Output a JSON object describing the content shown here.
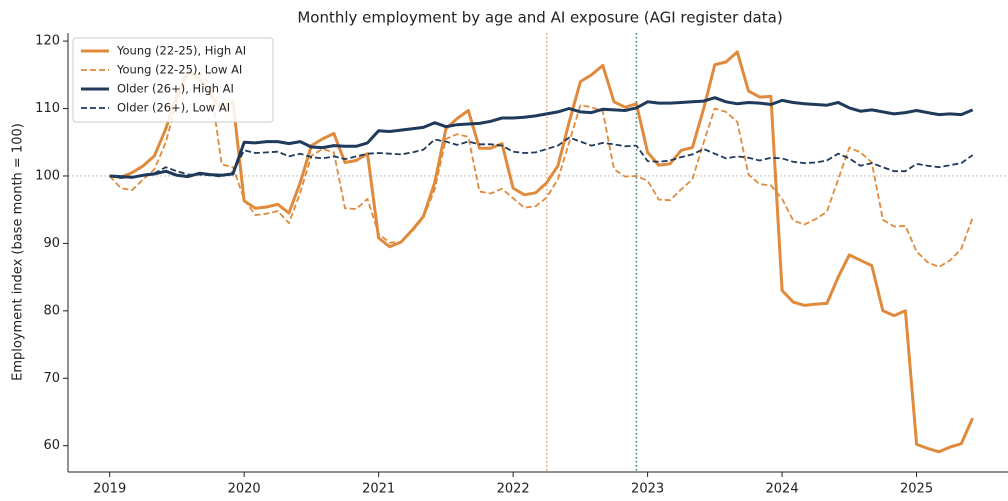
{
  "chart_data": {
    "type": "line",
    "title": "Monthly employment by age and AI exposure (AGI register data)",
    "y_label": "Employment index (base month = 100)",
    "x": [
      2019,
      2019.083,
      2019.167,
      2019.25,
      2019.333,
      2019.417,
      2019.5,
      2019.583,
      2019.667,
      2019.75,
      2019.833,
      2019.917,
      2020,
      2020.083,
      2020.167,
      2020.25,
      2020.333,
      2020.417,
      2020.5,
      2020.583,
      2020.667,
      2020.75,
      2020.833,
      2020.917,
      2021,
      2021.083,
      2021.167,
      2021.25,
      2021.333,
      2021.417,
      2021.5,
      2021.583,
      2021.667,
      2021.75,
      2021.833,
      2021.917,
      2022,
      2022.083,
      2022.167,
      2022.25,
      2022.333,
      2022.417,
      2022.5,
      2022.583,
      2022.667,
      2022.75,
      2022.833,
      2022.917,
      2023,
      2023.083,
      2023.167,
      2023.25,
      2023.333,
      2023.417,
      2023.5,
      2023.583,
      2023.667,
      2023.75,
      2023.833,
      2023.917,
      2024,
      2024.083,
      2024.167,
      2024.25,
      2024.333,
      2024.417,
      2024.5,
      2024.583,
      2024.667,
      2024.75,
      2024.833,
      2024.917,
      2025,
      2025.083,
      2025.167,
      2025.25,
      2025.333,
      2025.417
    ],
    "series": [
      {
        "name": "Young (22-25), High AI",
        "color": "#e08a3c",
        "linestyle": "solid",
        "values": [
          100,
          99.8,
          100.5,
          101.5,
          103,
          107,
          112,
          115.5,
          114.5,
          112,
          110,
          111,
          96.3,
          95.2,
          95.4,
          95.8,
          94.5,
          99,
          104.5,
          105.5,
          106.3,
          102,
          102.3,
          103.3,
          90.8,
          89.5,
          90.2,
          92,
          94,
          99,
          107,
          108.5,
          109.7,
          104.1,
          104.1,
          104.8,
          98.2,
          97.2,
          97.5,
          99,
          101.5,
          108,
          114,
          115,
          116.4,
          111,
          110.2,
          110.7,
          103.5,
          101.6,
          101.8,
          103.8,
          104.2,
          110,
          116.5,
          116.9,
          118.4,
          112.6,
          111.7,
          111.8,
          83,
          81.3,
          80.8,
          81,
          81.1,
          85,
          88.3,
          87.5,
          86.7,
          80,
          79.3,
          80,
          60.2,
          59.6,
          59.1,
          59.8,
          60.3,
          64.1
        ]
      },
      {
        "name": "Young (22-25), Low AI",
        "color": "#e08a3c",
        "linestyle": "dashed",
        "values": [
          100,
          98.2,
          97.9,
          99.5,
          101,
          105,
          111,
          115.2,
          115.4,
          113.5,
          101.7,
          101.3,
          96.5,
          94.2,
          94.4,
          94.8,
          93,
          97.5,
          103,
          104,
          103.5,
          95.2,
          95.1,
          96.6,
          91.4,
          90.1,
          90.2,
          91.8,
          93.8,
          98,
          105.5,
          106.2,
          105.8,
          97.7,
          97.4,
          98.1,
          96.7,
          95.3,
          95.5,
          96.8,
          99.5,
          105,
          110.5,
          110.2,
          109.6,
          101,
          99.9,
          100,
          99.3,
          96.5,
          96.4,
          98,
          99.5,
          105,
          110,
          109.5,
          108,
          100.2,
          98.8,
          98.6,
          96.6,
          93.4,
          92.8,
          93.6,
          94.7,
          99.5,
          104.2,
          103.5,
          102,
          93.5,
          92.5,
          92.6,
          88.8,
          87.2,
          86.5,
          87.5,
          89.2,
          93.8
        ]
      },
      {
        "name": "Older (26+), High AI",
        "color": "#1f3a5a",
        "linestyle": "solid",
        "values": [
          100,
          99.9,
          99.8,
          100.1,
          100.3,
          100.7,
          100.1,
          99.9,
          100.4,
          100.2,
          100.1,
          100.3,
          105,
          104.9,
          105.1,
          105.1,
          104.8,
          105.1,
          104.3,
          104.2,
          104.5,
          104.4,
          104.4,
          104.9,
          106.7,
          106.6,
          106.8,
          107,
          107.2,
          107.9,
          107.3,
          107.6,
          107.7,
          107.8,
          108.1,
          108.6,
          108.6,
          108.7,
          108.9,
          109.2,
          109.5,
          110,
          109.5,
          109.4,
          109.9,
          109.8,
          109.7,
          110.1,
          111,
          110.8,
          110.8,
          110.9,
          111,
          111.1,
          111.6,
          111,
          110.7,
          110.9,
          110.8,
          110.6,
          111.2,
          110.9,
          110.7,
          110.6,
          110.5,
          110.9,
          110.1,
          109.6,
          109.8,
          109.5,
          109.2,
          109.4,
          109.7,
          109.4,
          109.1,
          109.2,
          109.1,
          109.8
        ]
      },
      {
        "name": "Older (26+), Low AI",
        "color": "#1f3a5a",
        "linestyle": "dashed",
        "values": [
          100,
          99.7,
          99.8,
          100.2,
          100.4,
          101.3,
          100.7,
          100.2,
          100.2,
          100.1,
          99.9,
          100.6,
          103.8,
          103.4,
          103.5,
          103.6,
          102.9,
          103.3,
          102.8,
          102.6,
          102.9,
          102.5,
          102.9,
          103.3,
          103.4,
          103.3,
          103.2,
          103.5,
          103.9,
          105.4,
          105.1,
          104.6,
          105.1,
          104.7,
          104.7,
          104.5,
          103.6,
          103.4,
          103.5,
          104,
          104.5,
          105.7,
          105.1,
          104.5,
          104.9,
          104.7,
          104.4,
          104.5,
          102.2,
          102.1,
          102.3,
          102.8,
          103.2,
          104,
          103.3,
          102.6,
          102.9,
          102.7,
          102.3,
          102.7,
          102.6,
          102.1,
          101.9,
          102,
          102.3,
          103.3,
          102.6,
          101.5,
          101.9,
          101.3,
          100.7,
          100.7,
          101.8,
          101.5,
          101.3,
          101.6,
          101.9,
          103.1
        ]
      }
    ],
    "xlim": [
      2018.69,
      2025.68
    ],
    "xticks": [
      2019,
      2020,
      2021,
      2022,
      2023,
      2024,
      2025
    ],
    "ylim": [
      56.1,
      121.2
    ],
    "yticks": [
      60,
      70,
      80,
      90,
      100,
      110,
      120
    ],
    "vlines": [
      {
        "x": 2022.25,
        "color": "#e8a36a"
      },
      {
        "x": 2022.917,
        "color": "#3a7d62"
      }
    ],
    "hline": {
      "y": 100,
      "color": "#bbbbbb"
    },
    "legend": "upper left"
  }
}
